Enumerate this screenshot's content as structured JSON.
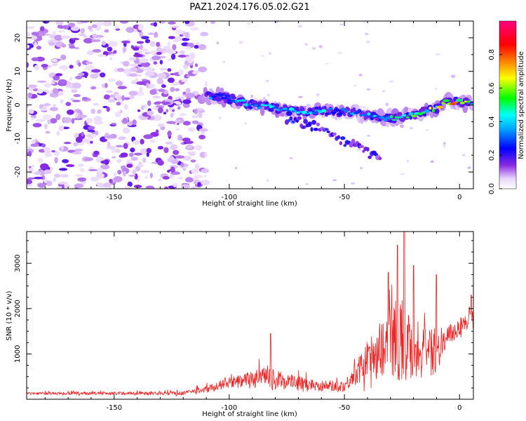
{
  "title": "PAZ1.2024.176.05.02.G21",
  "chart_data": [
    {
      "type": "heatmap",
      "xlabel": "Height of straight line (km)",
      "ylabel": "Frequency (Hz)",
      "xlim": [
        -188,
        6
      ],
      "ylim": [
        -25,
        25
      ],
      "xticks": [
        -150,
        -100,
        -50,
        0
      ],
      "yticks": [
        20,
        10,
        0,
        -10,
        -20
      ],
      "ridge": {
        "x": [
          -110,
          -100,
          -90,
          -80,
          -70,
          -60,
          -50,
          -40,
          -30,
          -20,
          -10,
          -5,
          0,
          5
        ],
        "y": [
          3,
          2,
          0,
          -1,
          -2,
          -2,
          -2,
          -3,
          -4,
          -3,
          -1,
          1,
          1,
          0
        ],
        "peak_amplitude": [
          0.35,
          0.45,
          0.4,
          0.45,
          0.5,
          0.45,
          0.4,
          0.45,
          0.55,
          0.6,
          0.7,
          0.8,
          0.85,
          0.7
        ]
      },
      "branch": {
        "x": [
          -75,
          -70,
          -65,
          -60,
          -55,
          -50,
          -45,
          -40,
          -35
        ],
        "y": [
          -4,
          -5,
          -6,
          -7,
          -9,
          -11,
          -12,
          -14,
          -16
        ]
      },
      "colorbar": {
        "label": "Normalized spectral amplitude",
        "range": [
          0,
          1
        ],
        "ticks": [
          0.0,
          0.2,
          0.4,
          0.6,
          0.8
        ],
        "colors": [
          "#ffffff",
          "#8a2be2",
          "#0000ff",
          "#00ffff",
          "#00ff00",
          "#ffff00",
          "#ff8000",
          "#ff0000",
          "#ff0080"
        ]
      }
    },
    {
      "type": "line",
      "xlabel": "Height of straight line (km)",
      "ylabel": "SNR (10 * v/v)",
      "xlim": [
        -188,
        6
      ],
      "ylim": [
        0,
        3700
      ],
      "xticks": [
        -150,
        -100,
        -50,
        0
      ],
      "yticks": [
        1000,
        2000,
        3000
      ],
      "color": "#ee2222",
      "envelope": {
        "x": [
          -188,
          -150,
          -120,
          -110,
          -100,
          -90,
          -85,
          -80,
          -70,
          -60,
          -50,
          -45,
          -40,
          -35,
          -30,
          -25,
          -20,
          -15,
          -10,
          -5,
          0,
          5
        ],
        "base": [
          120,
          120,
          120,
          200,
          320,
          400,
          380,
          360,
          320,
          260,
          250,
          500,
          700,
          900,
          1100,
          1000,
          900,
          850,
          900,
          1300,
          1550,
          1700
        ],
        "spread": [
          60,
          70,
          80,
          150,
          250,
          350,
          500,
          450,
          300,
          250,
          250,
          500,
          900,
          1200,
          1600,
          1800,
          1500,
          1200,
          900,
          500,
          400,
          400
        ]
      },
      "peaks": [
        {
          "x": -82,
          "y": 1450
        },
        {
          "x": -31,
          "y": 2800
        },
        {
          "x": -27,
          "y": 3400
        },
        {
          "x": -24,
          "y": 3700
        },
        {
          "x": -20,
          "y": 2950
        },
        {
          "x": -10,
          "y": 2750
        },
        {
          "x": 5,
          "y": 2300
        }
      ]
    }
  ]
}
